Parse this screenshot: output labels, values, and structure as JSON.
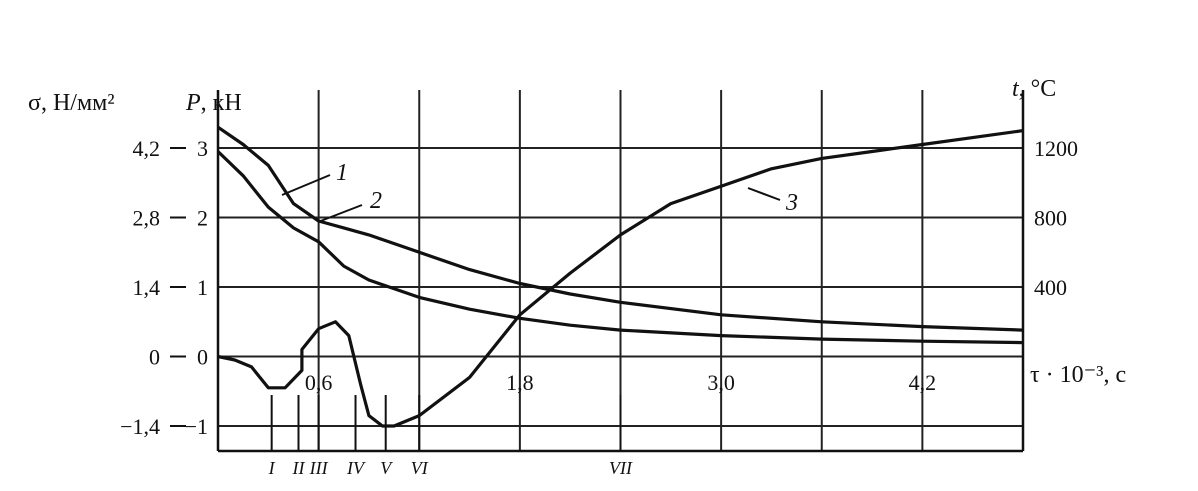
{
  "chart_data": {
    "type": "line",
    "axes": {
      "sigma_label": "σ, Н/мм²",
      "p_label_italic": "P",
      "p_label_unit": ", кН",
      "t_label_italic": "t",
      "t_label_unit": ", °С",
      "x_label": "τ · 10⁻³, с"
    },
    "sigma_ticks": [
      "4,2",
      "2,8",
      "1,4",
      "0",
      "−1,4"
    ],
    "p_ticks": [
      "3",
      "2",
      "1",
      "0",
      "−1"
    ],
    "t_ticks": [
      "1200",
      "800",
      "400"
    ],
    "x_ticks": [
      "0,6",
      "1,8",
      "3,0",
      "4,2"
    ],
    "xlim": [
      0,
      4.8
    ],
    "p_range": [
      -1,
      3
    ],
    "t_range": [
      0,
      1200
    ],
    "stages": [
      {
        "label": "I",
        "x": 0.32
      },
      {
        "label": "II",
        "x": 0.48
      },
      {
        "label": "III",
        "x": 0.6
      },
      {
        "label": "IV",
        "x": 0.82
      },
      {
        "label": "V",
        "x": 1.0
      },
      {
        "label": "VI",
        "x": 1.2
      },
      {
        "label": "VII",
        "x": 2.4
      }
    ],
    "series": [
      {
        "name": "1",
        "axis": "P",
        "points": [
          [
            0,
            3.3
          ],
          [
            0.15,
            3.05
          ],
          [
            0.3,
            2.75
          ],
          [
            0.45,
            2.2
          ],
          [
            0.6,
            1.95
          ],
          [
            0.75,
            1.85
          ],
          [
            0.9,
            1.75
          ],
          [
            1.2,
            1.5
          ],
          [
            1.5,
            1.25
          ],
          [
            1.8,
            1.05
          ],
          [
            2.1,
            0.9
          ],
          [
            2.4,
            0.78
          ],
          [
            3.0,
            0.6
          ],
          [
            3.6,
            0.5
          ],
          [
            4.2,
            0.43
          ],
          [
            4.8,
            0.38
          ]
        ]
      },
      {
        "name": "2",
        "axis": "P",
        "points": [
          [
            0,
            2.95
          ],
          [
            0.15,
            2.6
          ],
          [
            0.3,
            2.15
          ],
          [
            0.45,
            1.85
          ],
          [
            0.6,
            1.65
          ],
          [
            0.75,
            1.3
          ],
          [
            0.9,
            1.1
          ],
          [
            1.2,
            0.85
          ],
          [
            1.5,
            0.68
          ],
          [
            1.8,
            0.55
          ],
          [
            2.1,
            0.45
          ],
          [
            2.4,
            0.38
          ],
          [
            3.0,
            0.3
          ],
          [
            3.6,
            0.25
          ],
          [
            4.2,
            0.22
          ],
          [
            4.8,
            0.2
          ]
        ]
      },
      {
        "name": "3",
        "axis": "P",
        "points": [
          [
            0,
            0
          ],
          [
            0.1,
            -0.05
          ],
          [
            0.2,
            -0.15
          ],
          [
            0.3,
            -0.45
          ],
          [
            0.4,
            -0.45
          ],
          [
            0.5,
            -0.2
          ],
          [
            0.5,
            0.1
          ],
          [
            0.6,
            0.4
          ],
          [
            0.7,
            0.5
          ],
          [
            0.78,
            0.3
          ],
          [
            0.85,
            -0.4
          ],
          [
            0.9,
            -0.85
          ],
          [
            0.98,
            -1.0
          ],
          [
            1.05,
            -1.0
          ],
          [
            1.2,
            -0.85
          ],
          [
            1.5,
            -0.3
          ],
          [
            1.8,
            0.6
          ],
          [
            2.1,
            1.2
          ],
          [
            2.4,
            1.75
          ],
          [
            2.7,
            2.2
          ],
          [
            3.0,
            2.45
          ],
          [
            3.3,
            2.7
          ],
          [
            3.6,
            2.85
          ],
          [
            3.9,
            2.95
          ],
          [
            4.2,
            3.05
          ],
          [
            4.5,
            3.15
          ],
          [
            4.8,
            3.25
          ]
        ]
      }
    ],
    "curve_labels": [
      {
        "text": "1",
        "series": "1"
      },
      {
        "text": "2",
        "series": "2"
      },
      {
        "text": "3",
        "series": "3"
      }
    ]
  }
}
